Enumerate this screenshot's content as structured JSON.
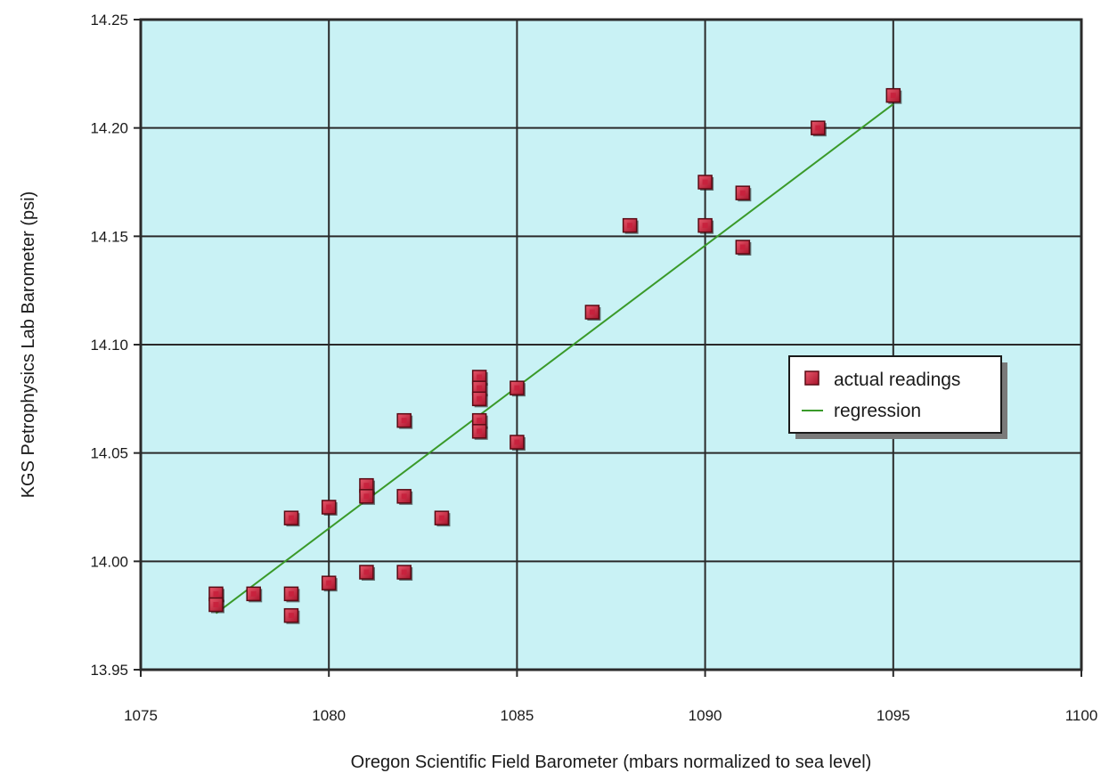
{
  "chart_data": {
    "type": "scatter",
    "title": "",
    "xlabel": "Oregon Scientific Field Barometer (mbars normalized to sea level)",
    "ylabel": "KGS Petrophysics Lab Barometer (psi)",
    "xlim": [
      1075,
      1100
    ],
    "ylim": [
      13.95,
      14.25
    ],
    "x_ticks": [
      1075,
      1080,
      1085,
      1090,
      1095,
      1100
    ],
    "y_ticks": [
      "13.95",
      "14.00",
      "14.05",
      "14.10",
      "14.15",
      "14.20",
      "14.25"
    ],
    "grid": true,
    "legend_position": "right",
    "colors": {
      "plot_background": "#c9f2f5",
      "grid": "#2a2a2a",
      "marker_fill": "#c8203c",
      "marker_edge": "#5a0a14",
      "regression_line": "#3a9a2a"
    },
    "series": [
      {
        "name": "actual readings",
        "kind": "scatter",
        "points": [
          [
            1077,
            13.985
          ],
          [
            1077,
            13.98
          ],
          [
            1078,
            13.985
          ],
          [
            1079,
            14.02
          ],
          [
            1079,
            13.985
          ],
          [
            1079,
            13.975
          ],
          [
            1080,
            14.025
          ],
          [
            1080,
            13.99
          ],
          [
            1081,
            14.035
          ],
          [
            1081,
            14.03
          ],
          [
            1081,
            13.995
          ],
          [
            1082,
            14.065
          ],
          [
            1082,
            14.03
          ],
          [
            1082,
            13.995
          ],
          [
            1083,
            14.02
          ],
          [
            1084,
            14.085
          ],
          [
            1084,
            14.08
          ],
          [
            1084,
            14.075
          ],
          [
            1084,
            14.065
          ],
          [
            1084,
            14.06
          ],
          [
            1085,
            14.08
          ],
          [
            1085,
            14.055
          ],
          [
            1087,
            14.115
          ],
          [
            1088,
            14.155
          ],
          [
            1090,
            14.175
          ],
          [
            1090,
            14.155
          ],
          [
            1091,
            14.17
          ],
          [
            1091,
            14.145
          ],
          [
            1093,
            14.2
          ],
          [
            1095,
            14.215
          ]
        ]
      },
      {
        "name": "regression",
        "kind": "line",
        "points": [
          [
            1077,
            13.976
          ],
          [
            1095,
            14.211
          ]
        ]
      }
    ]
  }
}
